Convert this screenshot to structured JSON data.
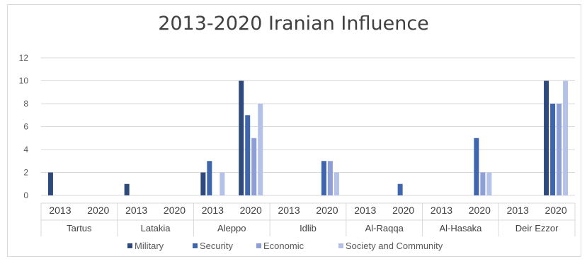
{
  "chart_data": {
    "type": "bar",
    "title": "2013-2020 Iranian Influence",
    "xlabel": "",
    "ylabel": "",
    "ylim": [
      0,
      12
    ],
    "yticks": [
      "0",
      "2",
      "4",
      "6",
      "8",
      "10",
      "12"
    ],
    "groups": [
      "Tartus",
      "Latakia",
      "Aleppo",
      "Idlib",
      "Al-Raqqa",
      "Al-Hasaka",
      "Deir Ezzor"
    ],
    "years": [
      "2013",
      "2020"
    ],
    "grid": true,
    "legend_position": "bottom",
    "series": [
      {
        "name": "Military",
        "color": "#2e4a7d",
        "values": [
          2,
          0,
          1,
          0,
          2,
          10,
          0,
          0,
          0,
          0,
          0,
          0,
          0,
          10
        ]
      },
      {
        "name": "Security",
        "color": "#3f66ad",
        "values": [
          0,
          0,
          0,
          0,
          3,
          7,
          0,
          3,
          0,
          1,
          0,
          5,
          0,
          8
        ]
      },
      {
        "name": "Economic",
        "color": "#8e9fd6",
        "values": [
          0,
          0,
          0,
          0,
          0,
          5,
          0,
          3,
          0,
          0,
          0,
          2,
          0,
          8
        ]
      },
      {
        "name": "Society and Community",
        "color": "#b3c2e6",
        "values": [
          0,
          0,
          0,
          0,
          2,
          8,
          0,
          2,
          0,
          0,
          0,
          2,
          0,
          10
        ]
      }
    ]
  }
}
